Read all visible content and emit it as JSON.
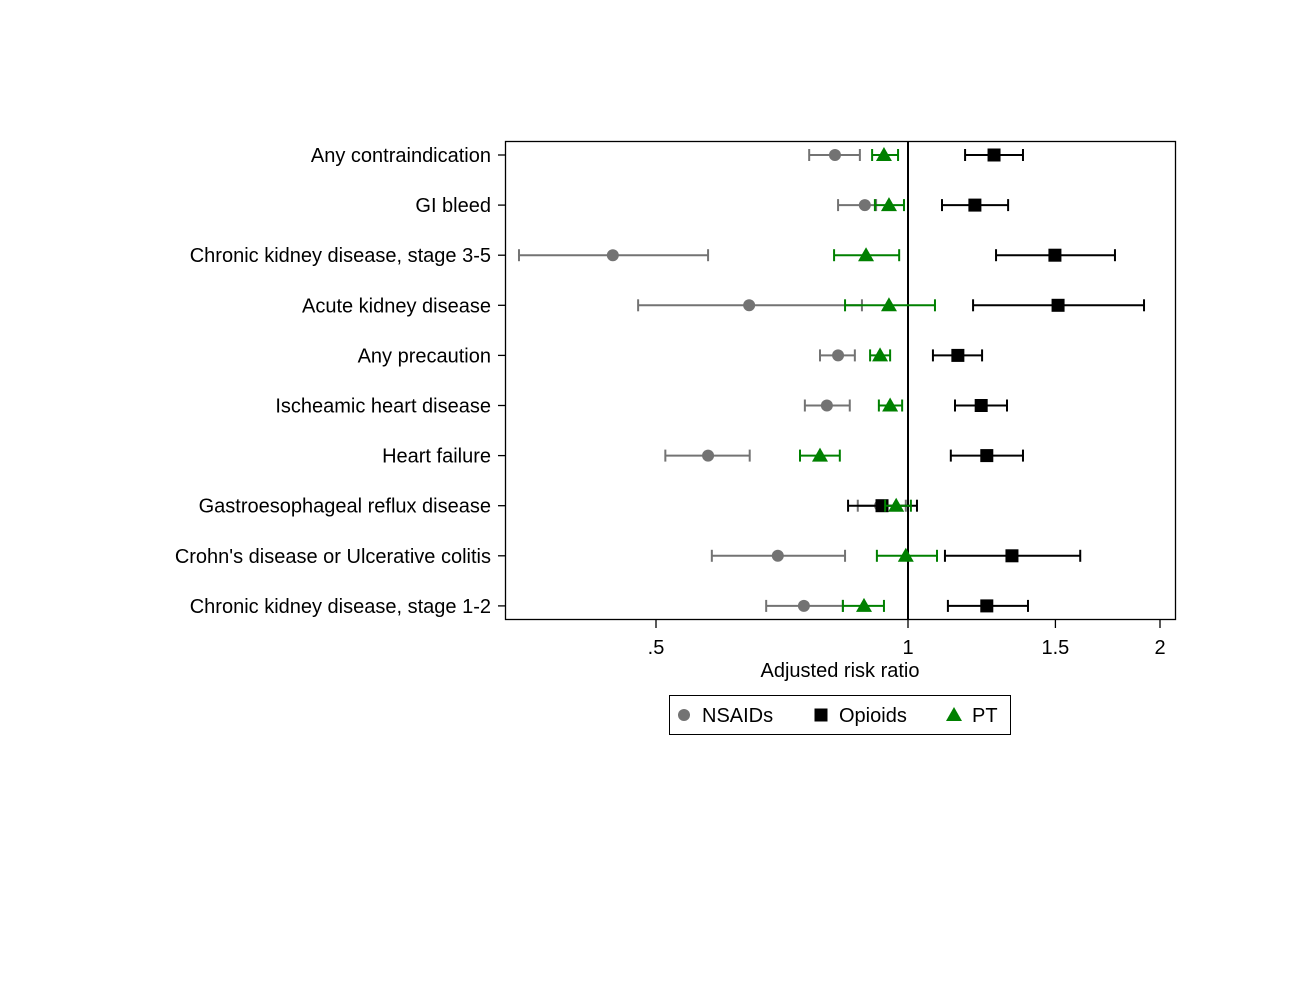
{
  "chart_data": {
    "type": "forest",
    "title": "",
    "xlabel": "Adjusted risk ratio",
    "xscale": "log",
    "xlim": [
      0.33,
      2.09
    ],
    "reference_line": 1,
    "xticks": [
      {
        "value": 0.5,
        "label": ".5"
      },
      {
        "value": 1,
        "label": "1"
      },
      {
        "value": 1.5,
        "label": "1.5"
      },
      {
        "value": 2,
        "label": "2"
      }
    ],
    "categories": [
      "Any contraindication",
      "GI bleed",
      "Chronic kidney disease, stage 3-5",
      "Acute kidney disease",
      "Any precaution",
      "Ischeamic heart disease",
      "Heart failure",
      "Gastroesophageal reflux disease",
      "Crohn's disease or Ulcerative colitis",
      "Chronic kidney disease, stage 1-2"
    ],
    "legend_position": "bottom",
    "series": [
      {
        "name": "NSAIDs",
        "marker": "circle",
        "color": "#737373",
        "estimate": [
          0.818,
          0.888,
          0.444,
          0.646,
          0.825,
          0.8,
          0.577,
          0.926,
          0.699,
          0.751
        ],
        "lower": [
          0.762,
          0.825,
          0.343,
          0.476,
          0.785,
          0.753,
          0.513,
          0.871,
          0.583,
          0.677
        ],
        "upper": [
          0.876,
          0.916,
          0.577,
          0.881,
          0.864,
          0.852,
          0.647,
          0.994,
          0.841,
          0.836
        ]
      },
      {
        "name": "Opioids",
        "marker": "square",
        "color": "#000000",
        "estimate": [
          1.267,
          1.202,
          1.498,
          1.511,
          1.147,
          1.223,
          1.242,
          0.931,
          1.331,
          1.242
        ],
        "lower": [
          1.17,
          1.098,
          1.274,
          1.196,
          1.071,
          1.138,
          1.125,
          0.848,
          1.107,
          1.116
        ],
        "upper": [
          1.372,
          1.317,
          1.767,
          1.914,
          1.226,
          1.313,
          1.372,
          1.025,
          1.606,
          1.391
        ]
      },
      {
        "name": "PT",
        "marker": "triangle",
        "color": "#008000",
        "estimate": [
          0.936,
          0.949,
          0.891,
          0.949,
          0.926,
          0.952,
          0.785,
          0.968,
          0.994,
          0.886
        ],
        "lower": [
          0.906,
          0.913,
          0.816,
          0.841,
          0.901,
          0.923,
          0.743,
          0.939,
          0.918,
          0.836
        ],
        "upper": [
          0.973,
          0.989,
          0.976,
          1.077,
          0.952,
          0.984,
          0.829,
          1.008,
          1.083,
          0.936
        ]
      }
    ]
  }
}
